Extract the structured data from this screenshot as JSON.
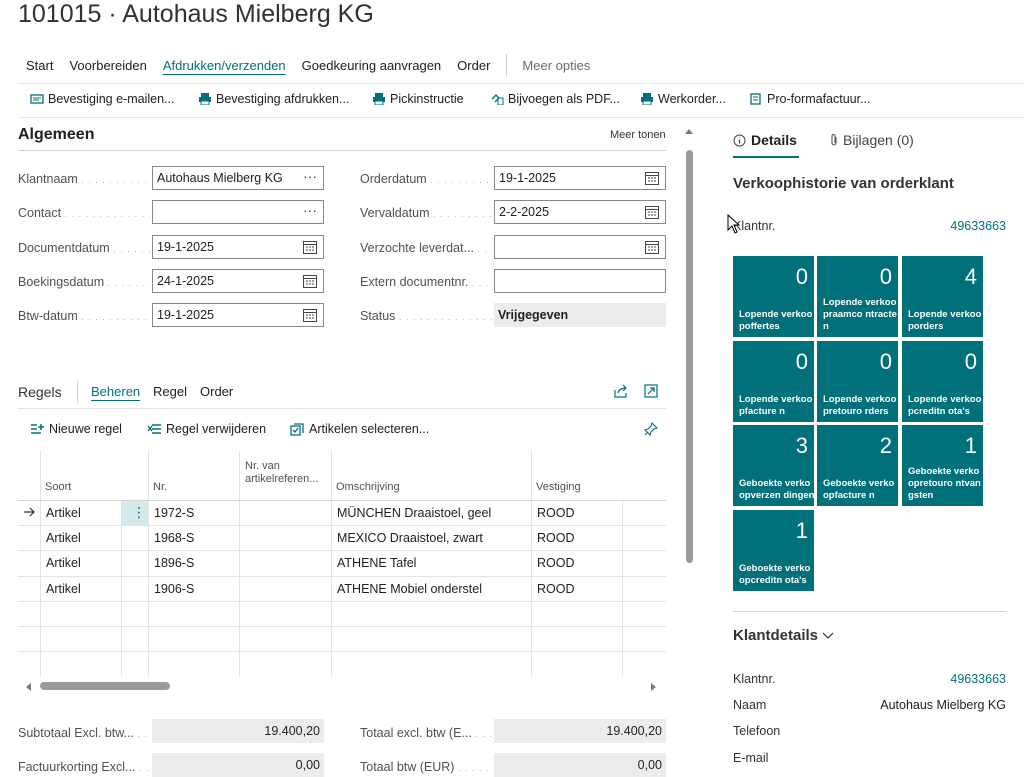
{
  "page": {
    "title": "101015 · Autohaus Mielberg KG"
  },
  "menu": {
    "items": [
      "Start",
      "Voorbereiden",
      "Afdrukken/verzenden",
      "Goedkeuring aanvragen",
      "Order"
    ],
    "more": "Meer opties"
  },
  "actions": [
    "Bevestiging e-mailen...",
    "Bevestiging afdrukken...",
    "Pickinstructie",
    "Bijvoegen als PDF...",
    "Werkorder...",
    "Pro-formafactuur..."
  ],
  "general": {
    "title": "Algemeen",
    "more": "Meer tonen",
    "fields": {
      "klantnaam": {
        "label": "Klantnaam",
        "value": "Autohaus Mielberg KG"
      },
      "contact": {
        "label": "Contact",
        "value": ""
      },
      "documentdatum": {
        "label": "Documentdatum",
        "value": "19-1-2025"
      },
      "boekingsdatum": {
        "label": "Boekingsdatum",
        "value": "24-1-2025"
      },
      "btwdatum": {
        "label": "Btw-datum",
        "value": "19-1-2025"
      },
      "orderdatum": {
        "label": "Orderdatum",
        "value": "19-1-2025"
      },
      "vervaldatum": {
        "label": "Vervaldatum",
        "value": "2-2-2025"
      },
      "verzochte": {
        "label": "Verzochte leverdat...",
        "value": ""
      },
      "extern": {
        "label": "Extern documentnr.",
        "value": ""
      },
      "status": {
        "label": "Status",
        "value": "Vrijgegeven"
      }
    }
  },
  "lines": {
    "title": "Regels",
    "tabs": [
      "Beheren",
      "Regel",
      "Order"
    ],
    "actions": [
      "Nieuwe regel",
      "Regel verwijderen",
      "Artikelen selecteren..."
    ],
    "columns": [
      "Soort",
      "Nr.",
      "Nr. van artikelreferen...",
      "Omschrijving",
      "Vestiging"
    ],
    "rows": [
      {
        "soort": "Artikel",
        "nr": "1972-S",
        "ref": "",
        "omschrijving": "MÜNCHEN Draaistoel, geel",
        "vestiging": "ROOD"
      },
      {
        "soort": "Artikel",
        "nr": "1968-S",
        "ref": "",
        "omschrijving": "MEXICO Draaistoel, zwart",
        "vestiging": "ROOD"
      },
      {
        "soort": "Artikel",
        "nr": "1896-S",
        "ref": "",
        "omschrijving": "ATHENE Tafel",
        "vestiging": "ROOD"
      },
      {
        "soort": "Artikel",
        "nr": "1906-S",
        "ref": "",
        "omschrijving": "ATHENE Mobiel onderstel",
        "vestiging": "ROOD"
      }
    ]
  },
  "totals": {
    "subtotaal": {
      "label": "Subtotaal Excl. btw...",
      "value": "19.400,20"
    },
    "factuurkorting": {
      "label": "Factuurkorting Excl...",
      "value": "0,00"
    },
    "totaal_excl": {
      "label": "Totaal excl. btw (E...",
      "value": "19.400,20"
    },
    "totaal_btw": {
      "label": "Totaal btw (EUR)",
      "value": "0,00"
    }
  },
  "factbox": {
    "tabs": {
      "details": "Details",
      "attachments": "Bijlagen (0)"
    },
    "history_title": "Verkoophistorie van orderklant",
    "klantnr_label": "Klantnr.",
    "klantnr_value": "49633663",
    "tiles": [
      {
        "count": "0",
        "label": "Lopende verkoopoffertes"
      },
      {
        "count": "0",
        "label": "Lopende verkoopraamco ntracten"
      },
      {
        "count": "4",
        "label": "Lopende verkooporders"
      },
      {
        "count": "0",
        "label": "Lopende verkoopfacture n"
      },
      {
        "count": "0",
        "label": "Lopende verkoopretouro rders"
      },
      {
        "count": "0",
        "label": "Lopende verkoopcreditn ota's"
      },
      {
        "count": "3",
        "label": "Geboekte verkoopverzen dingen"
      },
      {
        "count": "2",
        "label": "Geboekte verkoopfacture n"
      },
      {
        "count": "1",
        "label": "Geboekte verkoopretouro ntvangsten"
      },
      {
        "count": "1",
        "label": "Geboekte verkoopcreditn ota's"
      }
    ],
    "customer": {
      "title": "Klantdetails",
      "klantnr_label": "Klantnr.",
      "klantnr_value": "49633663",
      "naam_label": "Naam",
      "naam_value": "Autohaus Mielberg KG",
      "telefoon_label": "Telefoon",
      "email_label": "E-mail"
    }
  }
}
